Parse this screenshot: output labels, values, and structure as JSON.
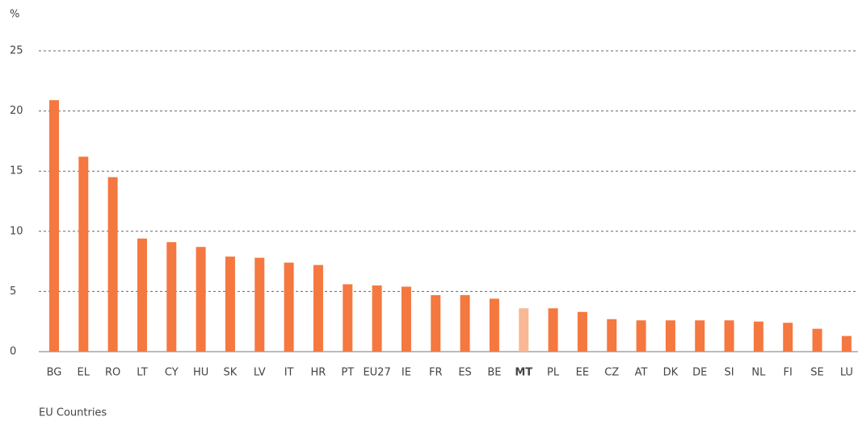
{
  "chart_data": {
    "type": "bar",
    "y_unit": "%",
    "x_axis_label": "EU Countries",
    "categories": [
      "BG",
      "EL",
      "RO",
      "LT",
      "CY",
      "HU",
      "SK",
      "LV",
      "IT",
      "HR",
      "PT",
      "EU27",
      "IE",
      "FR",
      "ES",
      "BE",
      "MT",
      "PL",
      "EE",
      "CZ",
      "AT",
      "DK",
      "DE",
      "SI",
      "NL",
      "FI",
      "SE",
      "LU"
    ],
    "values": [
      20.9,
      16.2,
      14.5,
      9.4,
      9.1,
      8.7,
      7.9,
      7.8,
      7.4,
      7.2,
      5.6,
      5.5,
      5.4,
      4.7,
      4.7,
      4.4,
      3.6,
      3.6,
      3.3,
      2.7,
      2.6,
      2.6,
      2.6,
      2.6,
      2.5,
      2.4,
      1.9,
      1.3
    ],
    "color": "#f47840",
    "highlight_color": "#f9b894",
    "colors": [
      "#f47840",
      "#f47840",
      "#f47840",
      "#f47840",
      "#f47840",
      "#f47840",
      "#f47840",
      "#f47840",
      "#f47840",
      "#f47840",
      "#f47840",
      "#f47840",
      "#f47840",
      "#f47840",
      "#f47840",
      "#f47840",
      "#f9b894",
      "#f47840",
      "#f47840",
      "#f47840",
      "#f47840",
      "#f47840",
      "#f47840",
      "#f47840",
      "#f47840",
      "#f47840",
      "#f47840",
      "#f47840"
    ],
    "ylim": [
      0,
      25
    ],
    "yticks": [
      0,
      5,
      10,
      15,
      20,
      25
    ],
    "grid": true
  }
}
